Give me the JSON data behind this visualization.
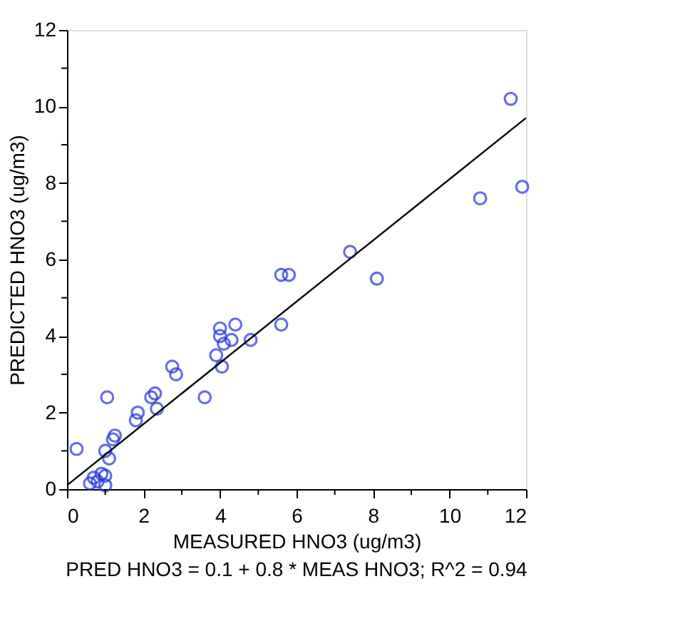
{
  "chart_data": {
    "type": "scatter",
    "xlabel": "MEASURED HNO3 (ug/m3)",
    "ylabel": "PREDICTED HNO3 (ug/m3)",
    "annotations": [
      "PRED HNO3 = 0.1 + 0.8 * MEAS HNO3; R^2 = 0.94"
    ],
    "xlim": [
      0,
      12
    ],
    "ylim": [
      0,
      12
    ],
    "xticks": [
      0,
      {
        "value": 1,
        "label": null
      },
      2,
      {
        "value": 3,
        "label": null
      },
      4,
      {
        "value": 5,
        "label": null
      },
      6,
      {
        "value": 7,
        "label": null
      },
      8,
      {
        "value": 9,
        "label": null
      },
      10,
      {
        "value": 11,
        "label": null
      },
      12
    ],
    "yticks": [
      0,
      {
        "value": 1,
        "label": null
      },
      2,
      {
        "value": 3,
        "label": null
      },
      4,
      {
        "value": 5,
        "label": null
      },
      6,
      {
        "value": 7,
        "label": null
      },
      8,
      {
        "value": 9,
        "label": null
      },
      10,
      {
        "value": 11,
        "label": null
      },
      12
    ],
    "grid": false,
    "series": [
      {
        "marker": "circle",
        "color": "#2433e0",
        "x": [
          0.25,
          0.6,
          0.7,
          0.8,
          0.9,
          1.0,
          1.0,
          1.05,
          1.0,
          1.1,
          1.2,
          1.25,
          1.8,
          1.85,
          2.2,
          2.3,
          2.35,
          2.75,
          2.85,
          3.6,
          3.9,
          4.0,
          4.0,
          4.05,
          4.1,
          4.4,
          4.3,
          4.8,
          5.6,
          5.6,
          5.8,
          7.4,
          8.1,
          10.8,
          11.6,
          11.9
        ],
        "values": [
          1.05,
          0.15,
          0.3,
          0.2,
          0.4,
          0.1,
          0.35,
          2.4,
          1.0,
          0.8,
          1.3,
          1.4,
          1.8,
          2.0,
          2.4,
          2.5,
          2.1,
          3.2,
          3.0,
          2.4,
          3.5,
          4.2,
          4.0,
          3.2,
          3.8,
          4.3,
          3.9,
          3.9,
          4.3,
          5.6,
          5.6,
          6.2,
          5.5,
          7.6,
          10.2,
          7.9
        ]
      },
      {
        "type": "line",
        "marker": "none",
        "color": "#000000",
        "x": [
          0,
          12
        ],
        "values": [
          0.1,
          9.7
        ]
      }
    ]
  }
}
